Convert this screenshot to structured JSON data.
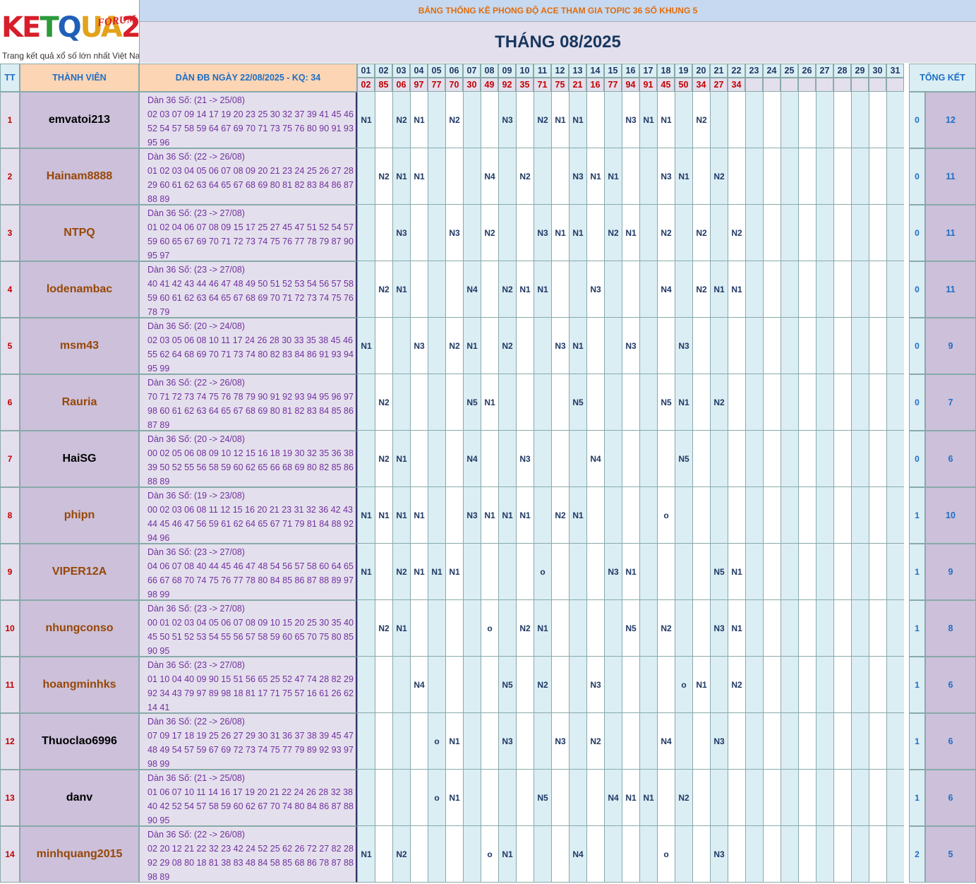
{
  "logo": {
    "text": "KETQUA2",
    "badge": "FORUM",
    "tagline": "Trang kết quả xổ số lớn nhất Việt Nam"
  },
  "header": {
    "top_title": "BẢNG THỐNG KÊ PHONG ĐỘ ACE THAM GIA TOPIC 36 SỐ KHUNG 5",
    "month_title": "THÁNG 08/2025",
    "col_tt": "TT",
    "col_member": "THÀNH VIÊN",
    "col_dan": "DÀN ĐB NGÀY 22/08/2025 - KQ: 34",
    "col_total": "TỔNG KẾT"
  },
  "days": [
    "01",
    "02",
    "03",
    "04",
    "05",
    "06",
    "07",
    "08",
    "09",
    "10",
    "11",
    "12",
    "13",
    "14",
    "15",
    "16",
    "17",
    "18",
    "19",
    "20",
    "21",
    "22",
    "23",
    "24",
    "25",
    "26",
    "27",
    "28",
    "29",
    "30",
    "31"
  ],
  "results": [
    "02",
    "85",
    "06",
    "97",
    "77",
    "70",
    "30",
    "49",
    "92",
    "35",
    "71",
    "75",
    "21",
    "16",
    "77",
    "94",
    "91",
    "45",
    "50",
    "34",
    "27",
    "34",
    "",
    "",
    "",
    "",
    "",
    "",
    "",
    "",
    ""
  ],
  "rows": [
    {
      "tt": "1",
      "name": "emvatoi213",
      "name_color": "#000000",
      "dan": [
        "Dàn 36 Số: (21 -> 25/08)",
        "02 03 07 09 14 17 19 20 23 25 30 32 37 39 41 45 46",
        "52 54 57 58 59 64 67 69 70 71 73 75 76 80 90 91 93",
        "95 96"
      ],
      "cells": [
        "N1",
        "",
        "N2",
        "N1",
        "",
        "N2",
        "",
        "",
        "N3",
        "",
        "N2",
        "N1",
        "N1",
        "",
        "",
        "N3",
        "N1",
        "N1",
        "",
        "N2",
        "",
        "",
        "",
        "",
        "",
        "",
        "",
        "",
        "",
        "",
        ""
      ],
      "total1": "0",
      "total2": "12"
    },
    {
      "tt": "2",
      "name": "Hainam8888",
      "name_color": "#974706",
      "dan": [
        "Dàn 36 Số: (22 -> 26/08)",
        "01 02 03 04 05 06 07 08 09 20 21 23 24 25 26 27 28",
        "29 60 61 62 63 64 65 67 68 69 80 81 82 83 84 86 87",
        "88 89"
      ],
      "cells": [
        "",
        "N2",
        "N1",
        "N1",
        "",
        "",
        "",
        "N4",
        "",
        "N2",
        "",
        "",
        "N3",
        "N1",
        "N1",
        "",
        "",
        "N3",
        "N1",
        "",
        "N2",
        "",
        "",
        "",
        "",
        "",
        "",
        "",
        "",
        "",
        ""
      ],
      "total1": "0",
      "total2": "11"
    },
    {
      "tt": "3",
      "name": "NTPQ",
      "name_color": "#974706",
      "dan": [
        "Dàn 36 Số: (23 -> 27/08)",
        "01 02 04 06 07 08 09 15 17 25 27 45 47 51 52 54 57",
        "59 60 65 67 69 70 71 72 73 74 75 76 77 78 79 87 90",
        "95 97"
      ],
      "cells": [
        "",
        "",
        "N3",
        "",
        "",
        "N3",
        "",
        "N2",
        "",
        "",
        "N3",
        "N1",
        "N1",
        "",
        "N2",
        "N1",
        "",
        "N2",
        "",
        "N2",
        "",
        "N2",
        "",
        "",
        "",
        "",
        "",
        "",
        "",
        "",
        ""
      ],
      "total1": "0",
      "total2": "11"
    },
    {
      "tt": "4",
      "name": "lodenambac",
      "name_color": "#974706",
      "dan": [
        "Dàn 36 Số: (23 -> 27/08)",
        "40 41 42 43 44 46 47 48 49 50 51 52 53 54 56 57 58",
        "59 60 61 62 63 64 65 67 68 69 70 71 72 73 74 75 76",
        "78 79"
      ],
      "cells": [
        "",
        "N2",
        "N1",
        "",
        "",
        "",
        "N4",
        "",
        "N2",
        "N1",
        "N1",
        "",
        "",
        "N3",
        "",
        "",
        "",
        "N4",
        "",
        "N2",
        "N1",
        "N1",
        "",
        "",
        "",
        "",
        "",
        "",
        "",
        "",
        ""
      ],
      "total1": "0",
      "total2": "11"
    },
    {
      "tt": "5",
      "name": "msm43",
      "name_color": "#974706",
      "dan": [
        "Dàn 36 Số: (20 -> 24/08)",
        "02 03 05 06 08 10 11 17 24 26 28 30 33 35 38 45 46",
        "55 62 64 68 69 70 71 73 74 80 82 83 84 86 91 93 94",
        "95 99"
      ],
      "cells": [
        "N1",
        "",
        "",
        "N3",
        "",
        "N2",
        "N1",
        "",
        "N2",
        "",
        "",
        "N3",
        "N1",
        "",
        "",
        "N3",
        "",
        "",
        "N3",
        "",
        "",
        "",
        "",
        "",
        "",
        "",
        "",
        "",
        "",
        "",
        ""
      ],
      "total1": "0",
      "total2": "9"
    },
    {
      "tt": "6",
      "name": "Rauria",
      "name_color": "#974706",
      "dan": [
        "Dàn 36 Số: (22 -> 26/08)",
        "70 71 72 73 74 75 76 78 79 90 91 92 93 94 95 96 97",
        "98 60 61 62 63 64 65 67 68 69 80 81 82 83 84 85 86",
        "87 89"
      ],
      "cells": [
        "",
        "N2",
        "",
        "",
        "",
        "",
        "N5",
        "N1",
        "",
        "",
        "",
        "",
        "N5",
        "",
        "",
        "",
        "",
        "N5",
        "N1",
        "",
        "N2",
        "",
        "",
        "",
        "",
        "",
        "",
        "",
        "",
        "",
        ""
      ],
      "total1": "0",
      "total2": "7"
    },
    {
      "tt": "7",
      "name": "HaiSG",
      "name_color": "#000000",
      "dan": [
        "Dàn 36 Số: (20 -> 24/08)",
        "00 02 05 06 08 09 10 12 15 16 18 19 30 32 35 36 38",
        "39 50 52 55 56 58 59 60 62 65 66 68 69 80 82 85 86",
        "88 89"
      ],
      "cells": [
        "",
        "N2",
        "N1",
        "",
        "",
        "",
        "N4",
        "",
        "",
        "N3",
        "",
        "",
        "",
        "N4",
        "",
        "",
        "",
        "",
        "N5",
        "",
        "",
        "",
        "",
        "",
        "",
        "",
        "",
        "",
        "",
        "",
        ""
      ],
      "total1": "0",
      "total2": "6"
    },
    {
      "tt": "8",
      "name": "phipn",
      "name_color": "#974706",
      "dan": [
        "Dàn 36 Số: (19 -> 23/08)",
        "00 02 03 06 08 11 12 15 16 20 21 23 31 32 36 42 43",
        "44 45 46 47 56 59 61 62 64 65 67 71 79 81 84 88 92",
        "94 96"
      ],
      "cells": [
        "N1",
        "N1",
        "N1",
        "N1",
        "",
        "",
        "N3",
        "N1",
        "N1",
        "N1",
        "",
        "N2",
        "N1",
        "",
        "",
        "",
        "",
        "o",
        "",
        "",
        "",
        "",
        "",
        "",
        "",
        "",
        "",
        "",
        "",
        "",
        ""
      ],
      "total1": "1",
      "total2": "10"
    },
    {
      "tt": "9",
      "name": "VIPER12A",
      "name_color": "#974706",
      "dan": [
        "Dàn 36 Số: (23 -> 27/08)",
        "04 06 07 08 40 44 45 46 47 48 54 56 57 58 60 64 65",
        "66 67 68 70 74 75 76 77 78 80 84 85 86 87 88 89 97",
        "98 99"
      ],
      "cells": [
        "N1",
        "",
        "N2",
        "N1",
        "N1",
        "N1",
        "",
        "",
        "",
        "",
        "o",
        "",
        "",
        "",
        "N3",
        "N1",
        "",
        "",
        "",
        "",
        "N5",
        "N1",
        "",
        "",
        "",
        "",
        "",
        "",
        "",
        "",
        ""
      ],
      "total1": "1",
      "total2": "9"
    },
    {
      "tt": "10",
      "name": "nhungconso",
      "name_color": "#974706",
      "dan": [
        "Dàn 36 Số: (23 -> 27/08)",
        "00 01 02 03 04 05 06 07 08 09 10 15 20 25 30 35 40",
        "45 50 51 52 53 54 55 56 57 58 59 60 65 70 75 80 85",
        "90 95"
      ],
      "cells": [
        "",
        "N2",
        "N1",
        "",
        "",
        "",
        "",
        "o",
        "",
        "N2",
        "N1",
        "",
        "",
        "",
        "",
        "N5",
        "",
        "N2",
        "",
        "",
        "N3",
        "N1",
        "",
        "",
        "",
        "",
        "",
        "",
        "",
        "",
        ""
      ],
      "total1": "1",
      "total2": "8"
    },
    {
      "tt": "11",
      "name": "hoangminhks",
      "name_color": "#974706",
      "dan": [
        "Dàn 36 Số: (23 -> 27/08)",
        "01 10 04 40 09 90 15 51 56 65 25 52 47 74 28 82 29",
        "92 34 43 79 97 89 98 18 81 17 71 75 57 16 61 26 62",
        "14 41"
      ],
      "cells": [
        "",
        "",
        "",
        "N4",
        "",
        "",
        "",
        "",
        "N5",
        "",
        "N2",
        "",
        "",
        "N3",
        "",
        "",
        "",
        "",
        "o",
        "N1",
        "",
        "N2",
        "",
        "",
        "",
        "",
        "",
        "",
        "",
        "",
        ""
      ],
      "total1": "1",
      "total2": "6"
    },
    {
      "tt": "12",
      "name": "Thuoclao6996",
      "name_color": "#000000",
      "dan": [
        "Dàn 36 Số: (22 -> 26/08)",
        "07 09 17 18 19 25 26 27 29 30 31 36 37 38 39 45 47",
        "48 49 54 57 59 67 69 72 73 74 75 77 79 89 92 93 97",
        "98 99"
      ],
      "cells": [
        "",
        "",
        "",
        "",
        "o",
        "N1",
        "",
        "",
        "N3",
        "",
        "",
        "N3",
        "",
        "N2",
        "",
        "",
        "",
        "N4",
        "",
        "",
        "N3",
        "",
        "",
        "",
        "",
        "",
        "",
        "",
        "",
        "",
        ""
      ],
      "total1": "1",
      "total2": "6"
    },
    {
      "tt": "13",
      "name": "danv",
      "name_color": "#000000",
      "dan": [
        "Dàn 36 Số: (21 -> 25/08)",
        "01 06 07 10 11 14 16 17 19 20 21 22 24 26 28 32 38",
        "40 42 52 54 57 58 59 60 62 67 70 74 80 84 86 87 88",
        "90 95"
      ],
      "cells": [
        "",
        "",
        "",
        "",
        "o",
        "N1",
        "",
        "",
        "",
        "",
        "N5",
        "",
        "",
        "",
        "N4",
        "N1",
        "N1",
        "",
        "N2",
        "",
        "",
        "",
        "",
        "",
        "",
        "",
        "",
        "",
        "",
        "",
        ""
      ],
      "total1": "1",
      "total2": "6"
    },
    {
      "tt": "14",
      "name": "minhquang2015",
      "name_color": "#974706",
      "dan": [
        "Dàn 36 Số: (22 -> 26/08)",
        "02 20 12 21 22 32 23 42 24 52 25 62 26 72 27 82 28",
        "92 29 08 80 18 81 38 83 48 84 58 85 68 86 78 87 88",
        "98 89"
      ],
      "cells": [
        "N1",
        "",
        "N2",
        "",
        "",
        "",
        "",
        "o",
        "N1",
        "",
        "",
        "",
        "N4",
        "",
        "",
        "",
        "",
        "o",
        "",
        "",
        "N3",
        "",
        "",
        "",
        "",
        "",
        "",
        "",
        "",
        "",
        ""
      ],
      "total1": "2",
      "total2": "5"
    }
  ]
}
